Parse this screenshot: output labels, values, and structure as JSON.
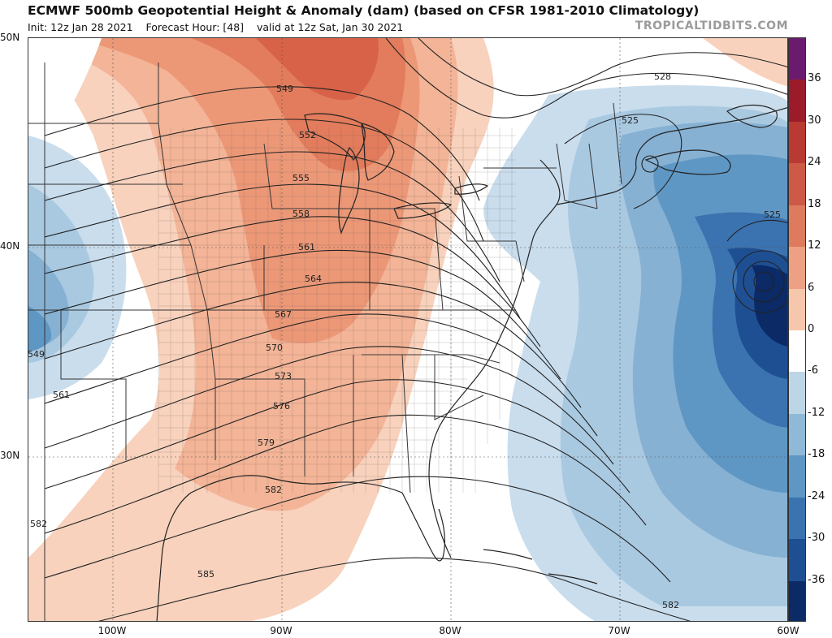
{
  "header": {
    "title": "ECMWF 500mb Geopotential Height & Anomaly (dam) (based on CFSR 1981-2010 Climatology)",
    "init": "Init: 12z Jan 28 2021",
    "forecast_hour": "Forecast Hour: [48]",
    "valid": "valid at 12z Sat, Jan 30 2021",
    "brand": "TROPICALTIDBITS.COM"
  },
  "axes": {
    "lat_labels": [
      "50N",
      "40N",
      "30N"
    ],
    "lon_labels": [
      "100W",
      "90W",
      "80W",
      "70W",
      "60W"
    ]
  },
  "colorbar": {
    "labels": [
      "36",
      "30",
      "24",
      "18",
      "12",
      "6",
      "0",
      "-6",
      "-12",
      "-18",
      "-24",
      "-30",
      "-36"
    ],
    "colors": [
      "#6a1b6e",
      "#9b1b2a",
      "#b93a33",
      "#cc5a47",
      "#de7a5e",
      "#eda084",
      "#f6c7ad",
      "#ffffff",
      "#bcd6e6",
      "#8fb9d6",
      "#5f97c4",
      "#3b73b0",
      "#1f4f93",
      "#0b2a66"
    ]
  },
  "contours": {
    "labels": [
      "549",
      "552",
      "555",
      "558",
      "561",
      "564",
      "567",
      "570",
      "573",
      "576",
      "579",
      "582",
      "585",
      "528",
      "525",
      "525",
      "549",
      "561",
      "582",
      "582"
    ]
  }
}
